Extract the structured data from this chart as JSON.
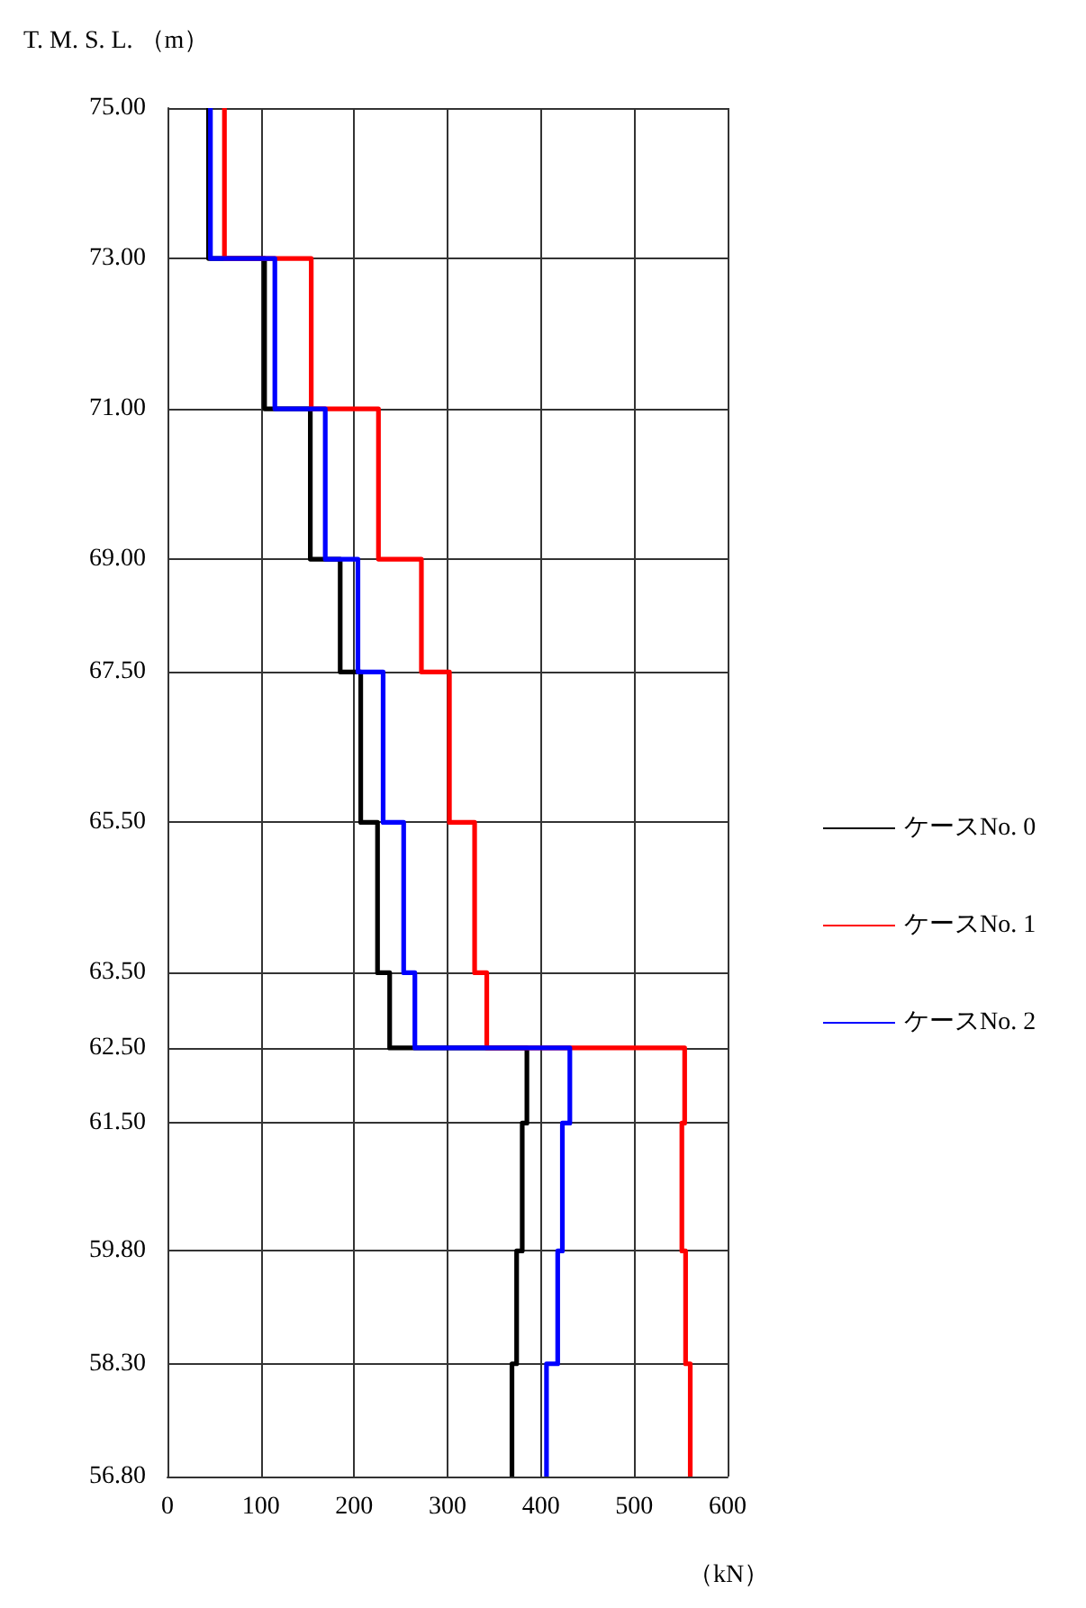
{
  "chart_data": {
    "type": "line",
    "xlabel": "（kN）",
    "ylabel": "T. M. S. L. （m）",
    "xlim": [
      0,
      600
    ],
    "xticks": [
      0,
      100,
      200,
      300,
      400,
      500,
      600
    ],
    "ylim": [
      56.8,
      75
    ],
    "yticks": [
      {
        "value": 75,
        "label": "75.00"
      },
      {
        "value": 73,
        "label": "73.00"
      },
      {
        "value": 71,
        "label": "71.00"
      },
      {
        "value": 69,
        "label": "69.00"
      },
      {
        "value": 67.5,
        "label": "67.50"
      },
      {
        "value": 65.5,
        "label": "65.50"
      },
      {
        "value": 63.5,
        "label": "63.50"
      },
      {
        "value": 62.5,
        "label": "62.50"
      },
      {
        "value": 61.5,
        "label": "61.50"
      },
      {
        "value": 59.8,
        "label": "59.80"
      },
      {
        "value": 58.3,
        "label": "58.30"
      },
      {
        "value": 56.8,
        "label": "56.80"
      }
    ],
    "grid": true,
    "legend": "right",
    "marker": "none",
    "series": [
      {
        "name": "ケースNo. 0",
        "color": "#000000",
        "x": [
          44,
          44,
          104,
          104,
          153,
          153,
          185,
          185,
          207,
          207,
          225,
          225,
          238,
          238,
          385,
          385,
          380,
          380,
          374,
          374,
          369,
          369
        ],
        "values": [
          75,
          73,
          73,
          71,
          71,
          69,
          69,
          67.5,
          67.5,
          65.5,
          65.5,
          63.5,
          63.5,
          62.5,
          62.5,
          61.5,
          61.5,
          59.8,
          59.8,
          58.3,
          58.3,
          56.8
        ]
      },
      {
        "name": "ケースNo. 1",
        "color": "#ff0000",
        "x": [
          61,
          61,
          154,
          154,
          226,
          226,
          272,
          272,
          302,
          302,
          329,
          329,
          342,
          342,
          554,
          554,
          551,
          551,
          555,
          555,
          560,
          560
        ],
        "values": [
          75,
          73,
          73,
          71,
          71,
          69,
          69,
          67.5,
          67.5,
          65.5,
          65.5,
          63.5,
          63.5,
          62.5,
          62.5,
          61.5,
          61.5,
          59.8,
          59.8,
          58.3,
          58.3,
          56.8
        ]
      },
      {
        "name": "ケースNo. 2",
        "color": "#0000ff",
        "x": [
          46,
          46,
          115,
          115,
          169,
          169,
          204,
          204,
          231,
          231,
          253,
          253,
          265,
          265,
          431,
          431,
          423,
          423,
          418,
          418,
          406,
          406
        ],
        "values": [
          75,
          73,
          73,
          71,
          71,
          69,
          69,
          67.5,
          67.5,
          65.5,
          65.5,
          63.5,
          63.5,
          62.5,
          62.5,
          61.5,
          61.5,
          59.8,
          59.8,
          58.3,
          58.3,
          56.8
        ]
      }
    ]
  }
}
